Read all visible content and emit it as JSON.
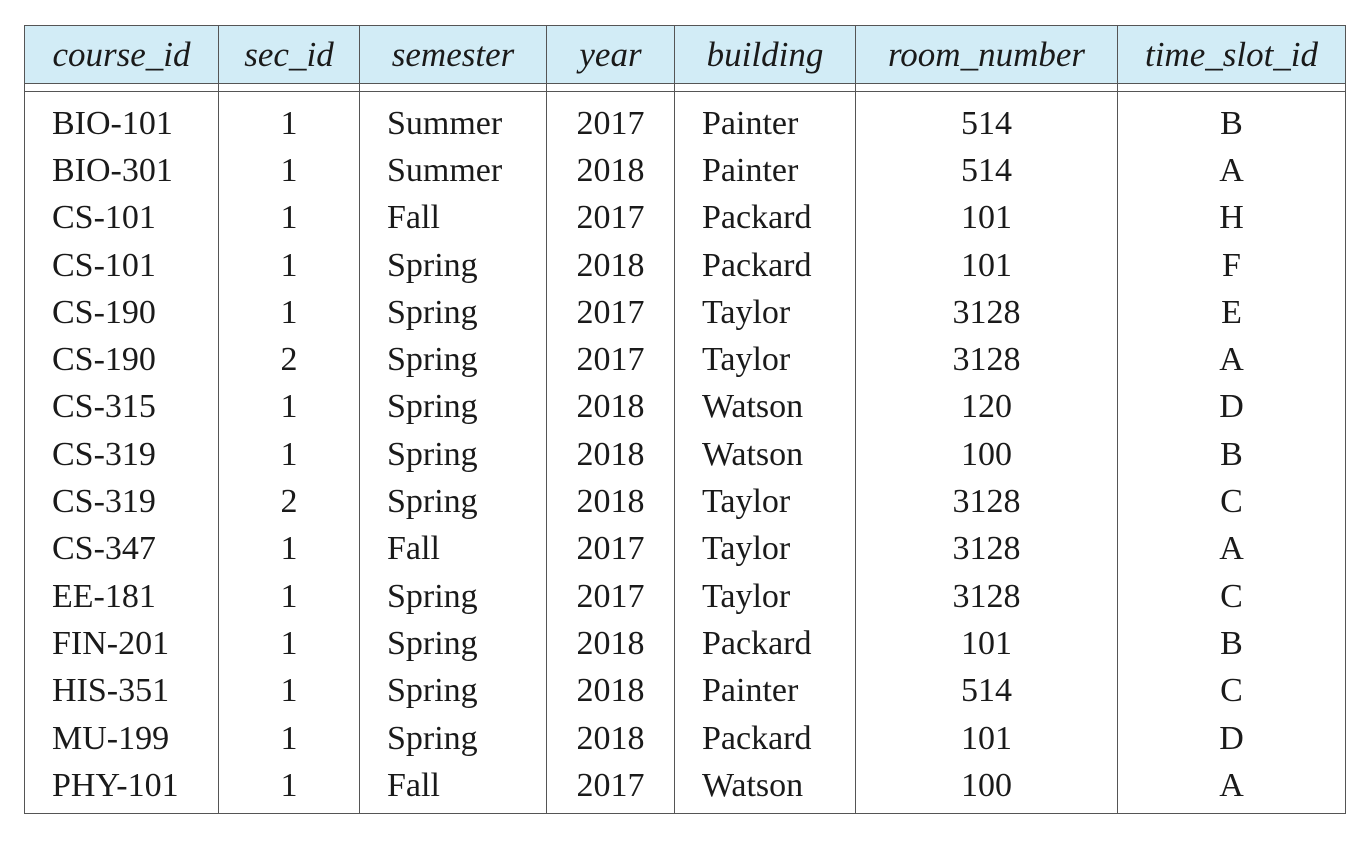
{
  "table": {
    "columns": [
      "course_id",
      "sec_id",
      "semester",
      "year",
      "building",
      "room_number",
      "time_slot_id"
    ],
    "rows": [
      [
        "BIO-101",
        "1",
        "Summer",
        "2017",
        "Painter",
        "514",
        "B"
      ],
      [
        "BIO-301",
        "1",
        "Summer",
        "2018",
        "Painter",
        "514",
        "A"
      ],
      [
        "CS-101",
        "1",
        "Fall",
        "2017",
        "Packard",
        "101",
        "H"
      ],
      [
        "CS-101",
        "1",
        "Spring",
        "2018",
        "Packard",
        "101",
        "F"
      ],
      [
        "CS-190",
        "1",
        "Spring",
        "2017",
        "Taylor",
        "3128",
        "E"
      ],
      [
        "CS-190",
        "2",
        "Spring",
        "2017",
        "Taylor",
        "3128",
        "A"
      ],
      [
        "CS-315",
        "1",
        "Spring",
        "2018",
        "Watson",
        "120",
        "D"
      ],
      [
        "CS-319",
        "1",
        "Spring",
        "2018",
        "Watson",
        "100",
        "B"
      ],
      [
        "CS-319",
        "2",
        "Spring",
        "2018",
        "Taylor",
        "3128",
        "C"
      ],
      [
        "CS-347",
        "1",
        "Fall",
        "2017",
        "Taylor",
        "3128",
        "A"
      ],
      [
        "EE-181",
        "1",
        "Spring",
        "2017",
        "Taylor",
        "3128",
        "C"
      ],
      [
        "FIN-201",
        "1",
        "Spring",
        "2018",
        "Packard",
        "101",
        "B"
      ],
      [
        "HIS-351",
        "1",
        "Spring",
        "2018",
        "Painter",
        "514",
        "C"
      ],
      [
        "MU-199",
        "1",
        "Spring",
        "2018",
        "Packard",
        "101",
        "D"
      ],
      [
        "PHY-101",
        "1",
        "Fall",
        "2017",
        "Watson",
        "100",
        "A"
      ]
    ]
  },
  "colors": {
    "header_background": "#d2ecf6",
    "border": "#555555",
    "text": "#1a1a1a"
  }
}
